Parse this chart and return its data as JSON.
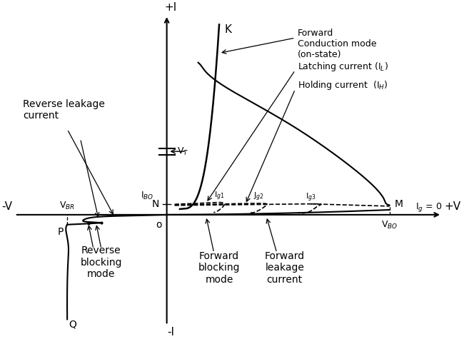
{
  "bg_color": "#ffffff",
  "labels": {
    "plus_I": "+I",
    "minus_I": "-I",
    "plus_V": "+V",
    "minus_V": "-V",
    "K": "K",
    "N": "N",
    "M": "M",
    "P": "P",
    "Q": "Q",
    "o": "o",
    "VBO": "V$_{BO}$",
    "VBR": "V$_{BR}$",
    "IBO": "I$_{BO}$",
    "VT": "V$_{T}$",
    "Ig0": "I$_g$ = 0",
    "Ig1": "I$_{g1}$",
    "Ig2": "J$_{g2}$",
    "Ig3": "I$_{g3}$",
    "forward_conduction": "Forward\nConduction mode\n(on-state)",
    "latching": "Latching current (I$_L$)",
    "holding": "Holding current  (I$_H$)",
    "reverse_leakage": "Reverse leakage\ncurrent",
    "reverse_blocking": "Reverse\nblocking\nmode",
    "forward_blocking": "Forward\nblocking\nmode",
    "forward_leakage": "Forward\nleakage\ncurrent"
  }
}
